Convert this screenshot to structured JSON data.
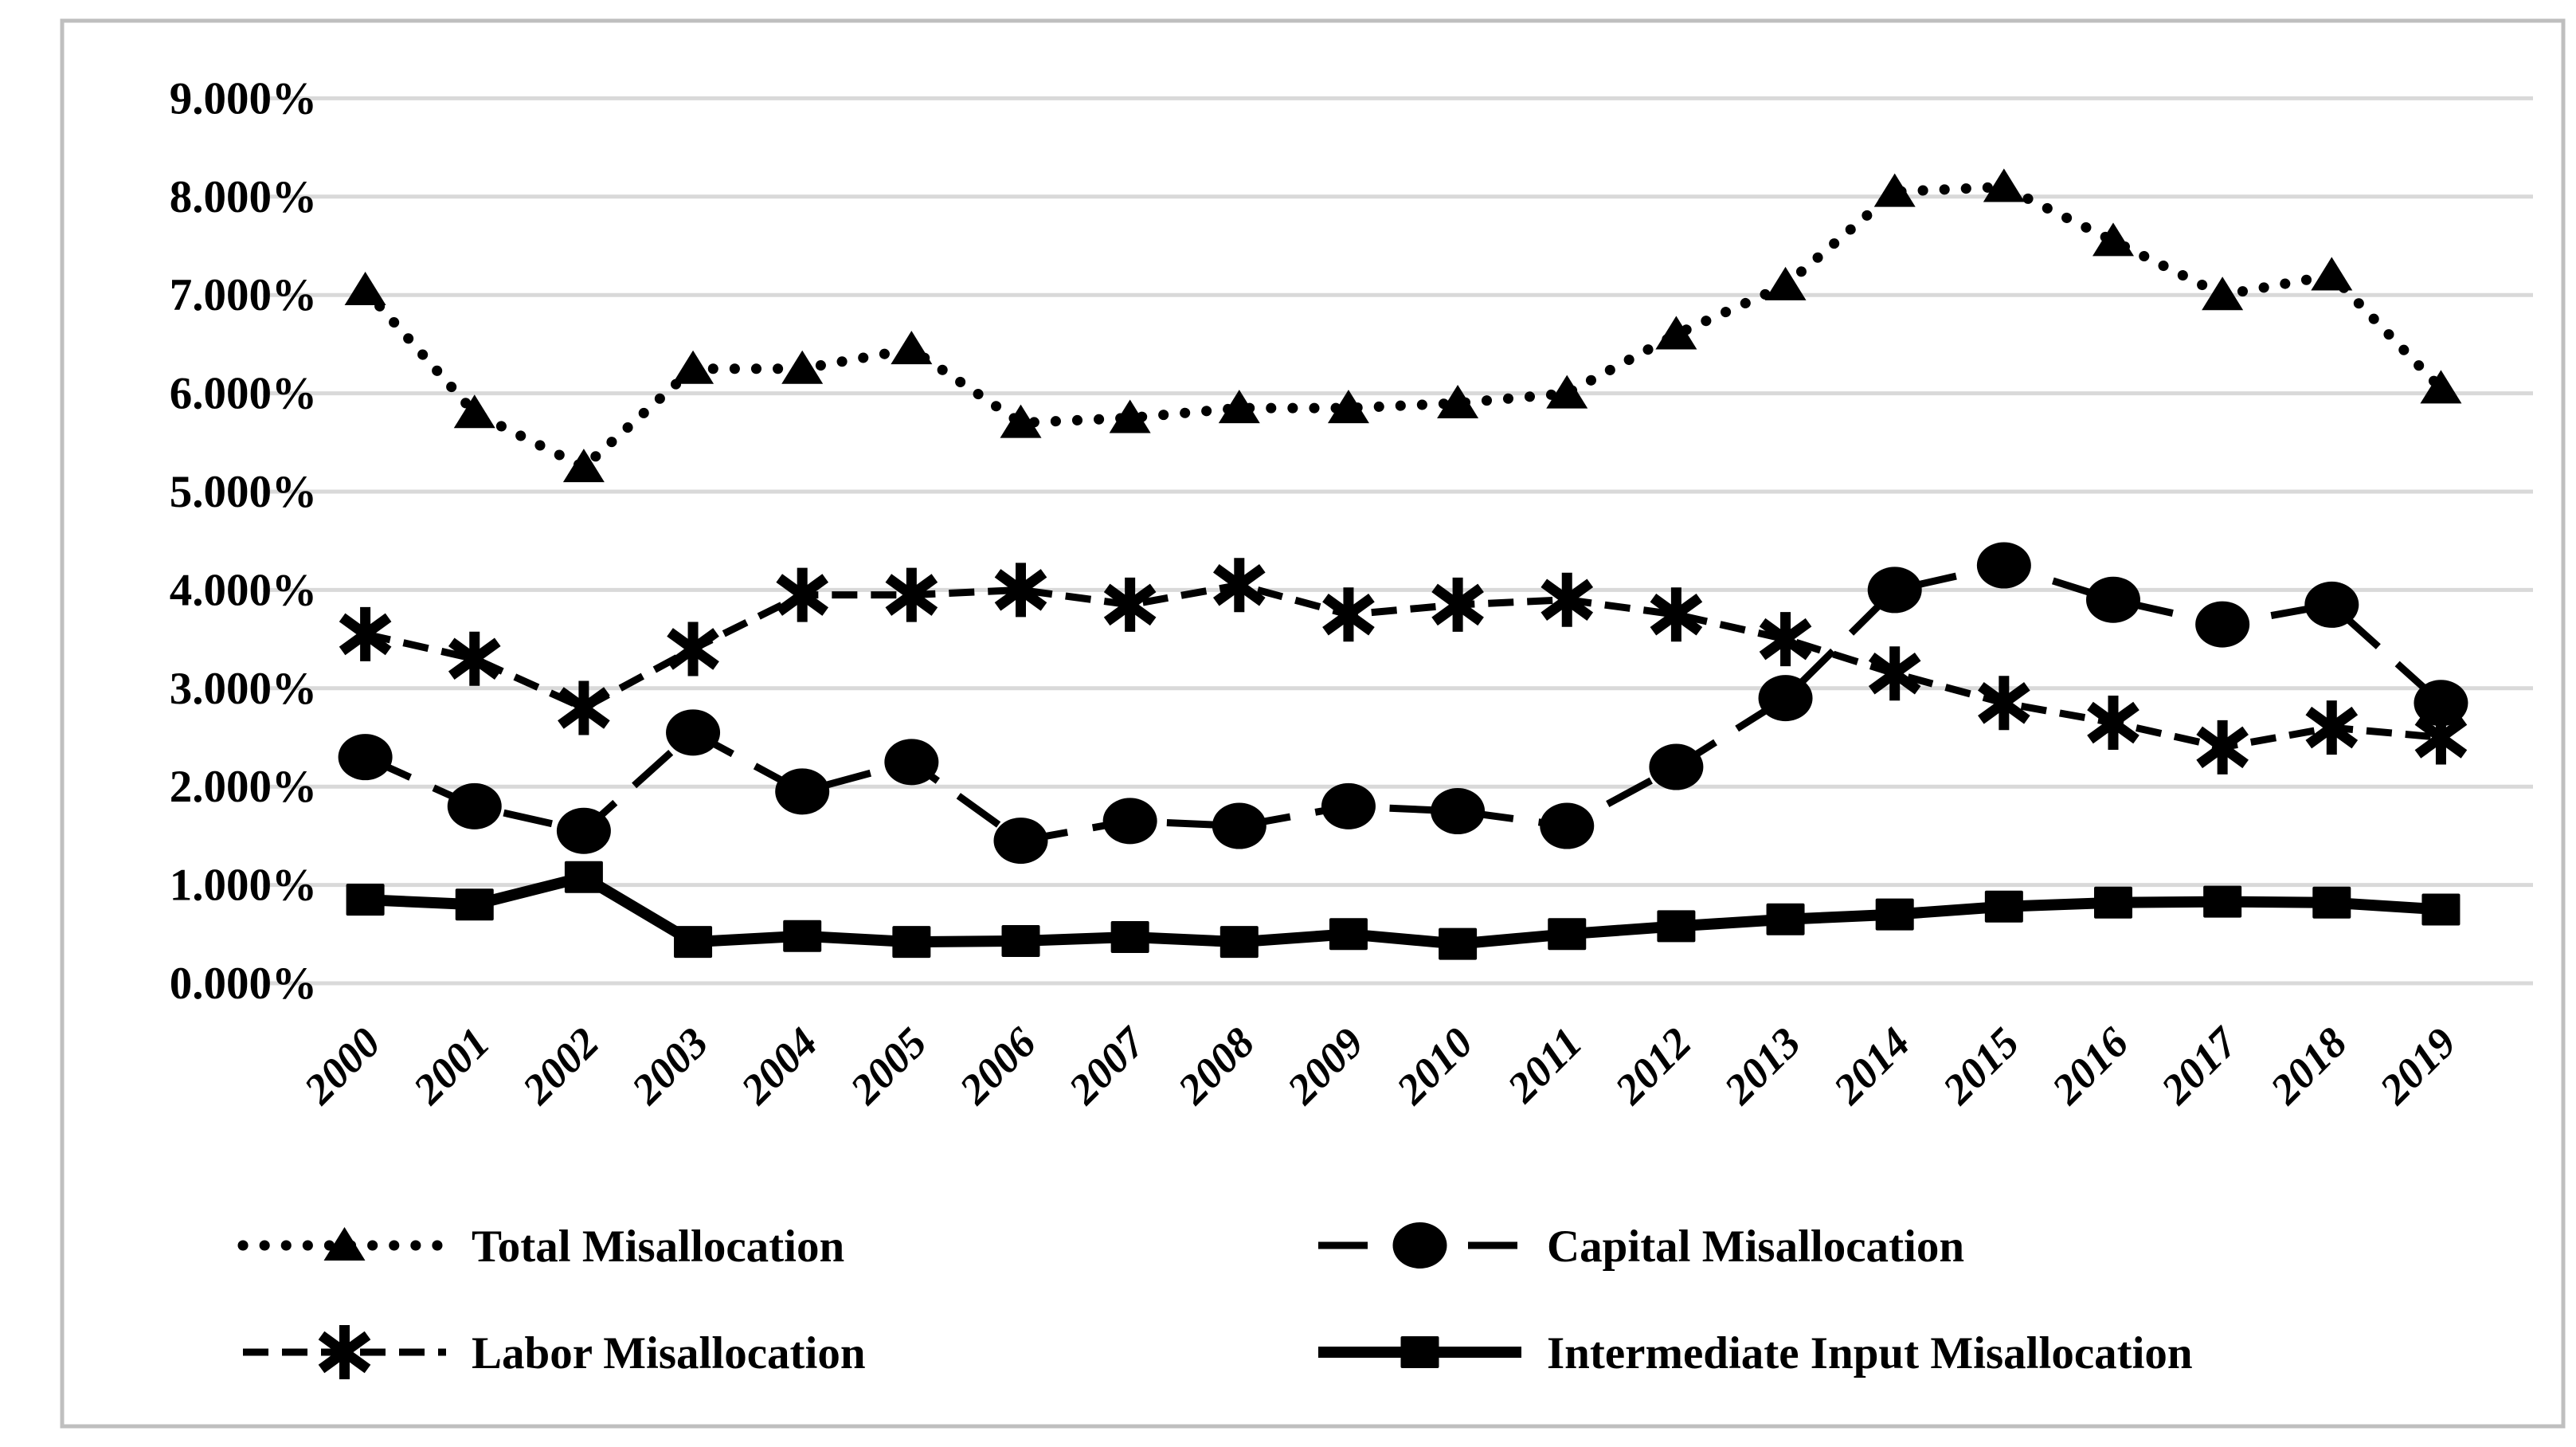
{
  "figure": {
    "background_color": "#ffffff",
    "border_color": "#bfbfbf"
  },
  "chart_data": {
    "type": "line",
    "title": "",
    "xlabel": "",
    "ylabel": "",
    "grid": "horizontal",
    "gridline_color": "#d9d9d9",
    "series_color": "#000000",
    "ylim": [
      0,
      9
    ],
    "y_tick_step": 1,
    "y_ticks": [
      "0.000%",
      "1.000%",
      "2.000%",
      "3.000%",
      "4.000%",
      "5.000%",
      "6.000%",
      "7.000%",
      "8.000%",
      "9.000%"
    ],
    "categories": [
      "2000",
      "2001",
      "2002",
      "2003",
      "2004",
      "2005",
      "2006",
      "2007",
      "2008",
      "2009",
      "2010",
      "2011",
      "2012",
      "2013",
      "2014",
      "2015",
      "2016",
      "2017",
      "2018",
      "2019"
    ],
    "series": [
      {
        "name": "Total Misallocation",
        "marker": "triangle",
        "line_style": "dotted",
        "values": [
          7.05,
          5.8,
          5.25,
          6.25,
          6.25,
          6.45,
          5.7,
          5.75,
          5.85,
          5.85,
          5.9,
          6.0,
          6.6,
          7.1,
          8.05,
          8.1,
          7.55,
          7.0,
          7.2,
          6.05
        ]
      },
      {
        "name": "Capital Misallocation",
        "marker": "circle",
        "line_style": "long-dash",
        "values": [
          2.3,
          1.8,
          1.55,
          2.55,
          1.95,
          2.25,
          1.45,
          1.65,
          1.6,
          1.8,
          1.75,
          1.6,
          2.2,
          2.9,
          4.0,
          4.25,
          3.9,
          3.65,
          3.85,
          2.85
        ]
      },
      {
        "name": "Labor Misallocation",
        "marker": "asterisk",
        "line_style": "dashed",
        "values": [
          3.55,
          3.3,
          2.8,
          3.4,
          3.95,
          3.95,
          4.0,
          3.85,
          4.05,
          3.75,
          3.85,
          3.9,
          3.75,
          3.5,
          3.15,
          2.85,
          2.65,
          2.4,
          2.6,
          2.5
        ]
      },
      {
        "name": "Intermediate Input Misallocation",
        "marker": "square",
        "line_style": "solid",
        "values": [
          0.85,
          0.8,
          1.08,
          0.42,
          0.48,
          0.42,
          0.43,
          0.47,
          0.42,
          0.5,
          0.4,
          0.5,
          0.58,
          0.65,
          0.7,
          0.78,
          0.82,
          0.83,
          0.82,
          0.75
        ]
      }
    ],
    "legend_position": "bottom",
    "legend_columns": 2,
    "legend_order": [
      "Total Misallocation",
      "Capital Misallocation",
      "Labor Misallocation",
      "Intermediate Input Misallocation"
    ]
  }
}
